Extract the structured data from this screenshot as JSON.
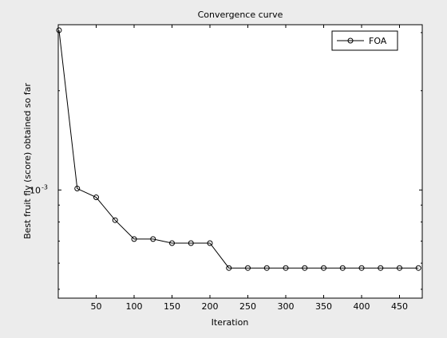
{
  "chart_data": {
    "type": "line",
    "title": "Convergence curve",
    "xlabel": "Iteration",
    "ylabel": "Best fruit fly (score) obtained so far",
    "xlim": [
      0,
      480
    ],
    "ylim": [
      0.00047,
      0.00317
    ],
    "yscale": "log",
    "xticks": [
      50,
      100,
      150,
      200,
      250,
      300,
      350,
      400,
      450
    ],
    "yticks": [
      {
        "value": 0.001,
        "label_base": "10",
        "label_exp": "-3"
      }
    ],
    "grid": false,
    "legend": "top-right",
    "series": [
      {
        "name": "FOA",
        "color": "#000000",
        "marker": "circle",
        "x": [
          1,
          25,
          50,
          75,
          100,
          125,
          150,
          175,
          200,
          225,
          250,
          275,
          300,
          325,
          350,
          375,
          400,
          425,
          450,
          475
        ],
        "y": [
          0.00305,
          0.00101,
          0.00095,
          0.00081,
          0.00071,
          0.00071,
          0.00069,
          0.00069,
          0.00069,
          0.00058,
          0.00058,
          0.00058,
          0.00058,
          0.00058,
          0.00058,
          0.00058,
          0.00058,
          0.00058,
          0.00058,
          0.00058
        ]
      }
    ]
  }
}
